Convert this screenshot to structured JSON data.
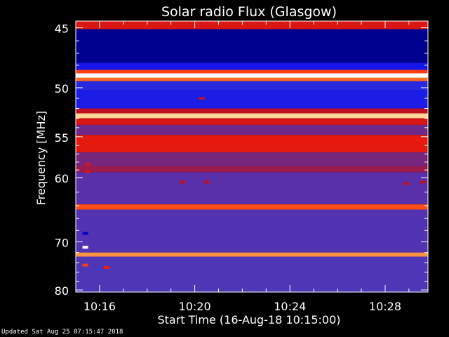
{
  "chart_data": {
    "type": "heatmap",
    "title": "Solar radio Flux (Glasgow)",
    "xlabel": "Start Time (16-Aug-18 10:15:00)",
    "ylabel": "Frequency [MHz]",
    "x_ticks": [
      "10:16",
      "10:20",
      "10:24",
      "10:28"
    ],
    "x_tick_minutes": [
      1,
      5,
      9,
      13
    ],
    "xlim_minutes": [
      0,
      14.8
    ],
    "y_ticks": [
      45,
      50,
      55,
      60,
      70,
      80
    ],
    "ylim": [
      44.5,
      80.5
    ],
    "y_scale": "reciprocal",
    "colorscale": [
      "#000033",
      "#0000ff",
      "#4040c8",
      "#5a2fa8",
      "#8a2060",
      "#c01020",
      "#ff2000",
      "#ff8030",
      "#ffe0a0",
      "#ffffff"
    ],
    "frequency_bands": [
      {
        "from": 44.5,
        "to": 45.1,
        "level": 0.6
      },
      {
        "from": 45.1,
        "to": 47.8,
        "level": 0.05
      },
      {
        "from": 47.8,
        "to": 48.4,
        "level": 0.15
      },
      {
        "from": 48.4,
        "to": 48.7,
        "level": 0.7
      },
      {
        "from": 48.7,
        "to": 49.1,
        "level": 1.0
      },
      {
        "from": 49.1,
        "to": 49.4,
        "level": 0.75
      },
      {
        "from": 49.4,
        "to": 50.2,
        "level": 0.18
      },
      {
        "from": 50.2,
        "to": 52.0,
        "level": 0.16
      },
      {
        "from": 52.0,
        "to": 52.5,
        "level": 0.55
      },
      {
        "from": 52.5,
        "to": 53.0,
        "level": 0.88
      },
      {
        "from": 53.0,
        "to": 53.7,
        "level": 0.6
      },
      {
        "from": 53.7,
        "to": 54.8,
        "level": 0.38
      },
      {
        "from": 54.8,
        "to": 56.8,
        "level": 0.62
      },
      {
        "from": 56.8,
        "to": 58.5,
        "level": 0.4
      },
      {
        "from": 58.5,
        "to": 59.3,
        "level": 0.48
      },
      {
        "from": 59.3,
        "to": 63.8,
        "level": 0.33
      },
      {
        "from": 63.8,
        "to": 64.6,
        "level": 0.72
      },
      {
        "from": 64.6,
        "to": 72.0,
        "level": 0.3
      },
      {
        "from": 72.0,
        "to": 72.8,
        "level": 0.8
      },
      {
        "from": 72.8,
        "to": 80.5,
        "level": 0.28
      }
    ],
    "spots": [
      {
        "t": 0.5,
        "f": 58.3,
        "level": 0.6
      },
      {
        "t": 0.5,
        "f": 59.2,
        "level": 0.6
      },
      {
        "t": 0.4,
        "f": 68.5,
        "level": 0.08
      },
      {
        "t": 0.4,
        "f": 71.0,
        "level": 1.0
      },
      {
        "t": 0.4,
        "f": 74.5,
        "level": 0.7
      },
      {
        "t": 1.3,
        "f": 75.0,
        "level": 0.65
      },
      {
        "t": 4.5,
        "f": 60.6,
        "level": 0.55
      },
      {
        "t": 5.5,
        "f": 60.6,
        "level": 0.55
      },
      {
        "t": 5.3,
        "f": 51.0,
        "level": 0.55
      },
      {
        "t": 13.9,
        "f": 60.8,
        "level": 0.55
      },
      {
        "t": 14.6,
        "f": 60.6,
        "level": 0.55
      }
    ]
  },
  "footer": {
    "updated": "Updated Sat Aug 25 07:15:47 2018"
  }
}
